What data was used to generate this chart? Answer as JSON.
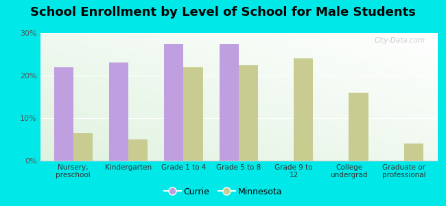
{
  "title": "School Enrollment by Level of School for Male Students",
  "categories": [
    "Nursery,\npreschool",
    "Kindergarten",
    "Grade 1 to 4",
    "Grade 5 to 8",
    "Grade 9 to\n12",
    "College\nundergrad",
    "Graduate or\nprofessional"
  ],
  "currie": [
    22,
    23,
    27.5,
    27.5,
    0,
    0,
    0
  ],
  "minnesota": [
    6.5,
    5,
    22,
    22.5,
    24,
    16,
    4
  ],
  "currie_color": "#bf9fdf",
  "minnesota_color": "#c8cc90",
  "background_color": "#00e8e8",
  "ylim": [
    0,
    30
  ],
  "yticks": [
    0,
    10,
    20,
    30
  ],
  "ytick_labels": [
    "0%",
    "10%",
    "20%",
    "30%"
  ],
  "bar_width": 0.35,
  "title_fontsize": 13,
  "legend_labels": [
    "Currie",
    "Minnesota"
  ]
}
